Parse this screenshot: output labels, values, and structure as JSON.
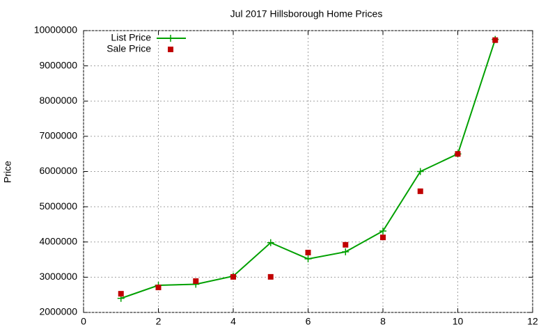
{
  "chart_data": {
    "type": "line",
    "title": "Jul 2017 Hillsborough Home Prices",
    "y_label": "Price",
    "x": [
      1,
      2,
      3,
      4,
      5,
      6,
      7,
      8,
      9,
      10,
      11
    ],
    "series": [
      {
        "name": "List Price",
        "color": "#00a000",
        "style": "linespoints",
        "values": [
          2400000,
          2770000,
          2800000,
          3030000,
          3980000,
          3520000,
          3720000,
          4310000,
          6000000,
          6500000,
          9750000
        ]
      },
      {
        "name": "Sale Price",
        "color": "#c00000",
        "style": "points",
        "values": [
          2530000,
          2710000,
          2890000,
          3010000,
          3010000,
          3700000,
          3920000,
          4130000,
          5440000,
          6500000,
          9730000
        ]
      }
    ],
    "xlim": [
      0,
      12
    ],
    "xticks": [
      0,
      2,
      4,
      6,
      8,
      10,
      12
    ],
    "ylim": [
      2000000,
      10000000
    ],
    "yticks": [
      2000000,
      3000000,
      4000000,
      5000000,
      6000000,
      7000000,
      8000000,
      9000000,
      10000000
    ],
    "grid": true,
    "legend": "top-left"
  }
}
